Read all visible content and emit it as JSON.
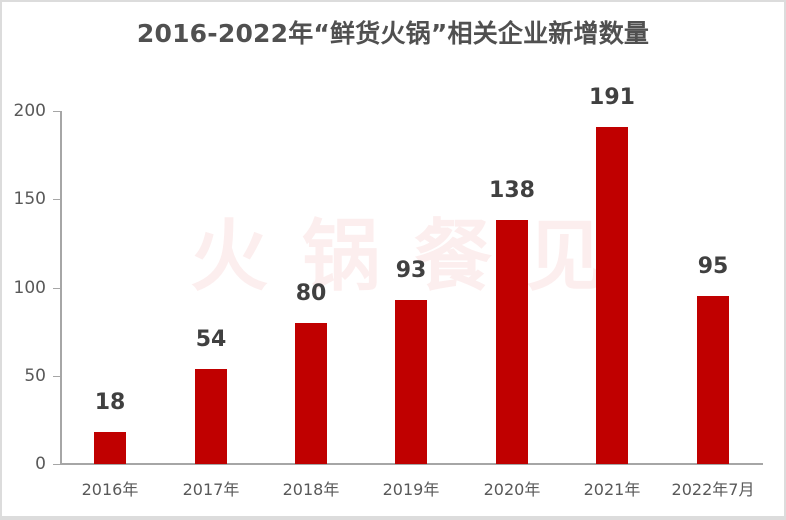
{
  "chart_data": {
    "type": "bar",
    "title": "2016-2022年“鲜货火锅”相关企业新增数量",
    "categories": [
      "2016年",
      "2017年",
      "2018年",
      "2019年",
      "2020年",
      "2021年",
      "2022年7月"
    ],
    "values": [
      18,
      54,
      80,
      93,
      138,
      191,
      95
    ],
    "xlabel": "",
    "ylabel": "",
    "ylim": [
      0,
      200
    ],
    "yticks": [
      0,
      50,
      100,
      150,
      200
    ],
    "grid": false,
    "legend": null,
    "data_labels": true,
    "bar_color": "#c00000",
    "watermark": "火锅餐见"
  },
  "colors": {
    "bar": "#c00000",
    "title_text": "#505050",
    "label_text": "#404040",
    "axis": "#a6a6a6"
  }
}
